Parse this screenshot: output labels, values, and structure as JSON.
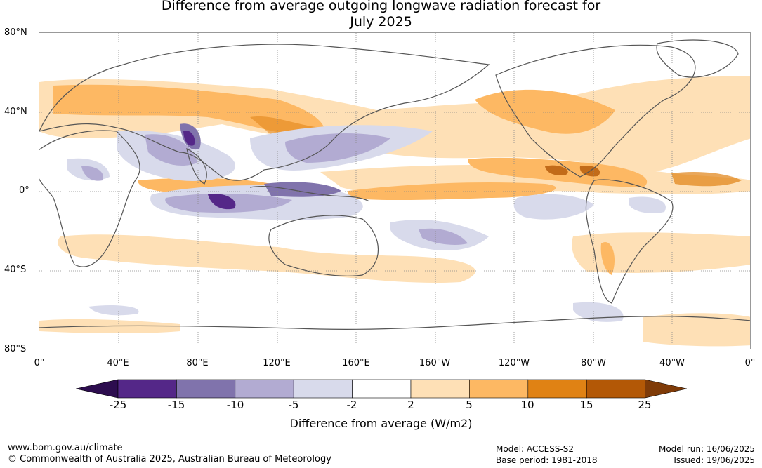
{
  "title_line1": "Difference from average outgoing longwave radiation forecast for",
  "title_line2": "July 2025",
  "lat_labels": [
    "80°N",
    "40°N",
    "0°",
    "40°S",
    "80°S"
  ],
  "lon_labels": [
    "0°",
    "40°E",
    "80°E",
    "120°E",
    "160°E",
    "160°W",
    "120°W",
    "80°W",
    "40°W",
    "0°"
  ],
  "colorbar": {
    "ticks": [
      "-25",
      "-15",
      "-10",
      "-5",
      "-2",
      "2",
      "5",
      "10",
      "15",
      "25"
    ],
    "colors": [
      "#2d0d4f",
      "#542788",
      "#8073ac",
      "#b2abd2",
      "#d8daeb",
      "#ffffff",
      "#fee0b6",
      "#fdb863",
      "#e08214",
      "#b35806",
      "#7f3b08"
    ],
    "label": "Difference from average (W/m2)"
  },
  "footer": {
    "site": "www.bom.gov.au/climate",
    "copyright": "© Commonwealth of Australia 2025, Australian Bureau of Meteorology",
    "model": "Model: ACCESS-S2",
    "base_period": "Base period: 1981-2018",
    "model_run": "Model run: 16/06/2025",
    "issued": "Issued: 19/06/2025"
  }
}
